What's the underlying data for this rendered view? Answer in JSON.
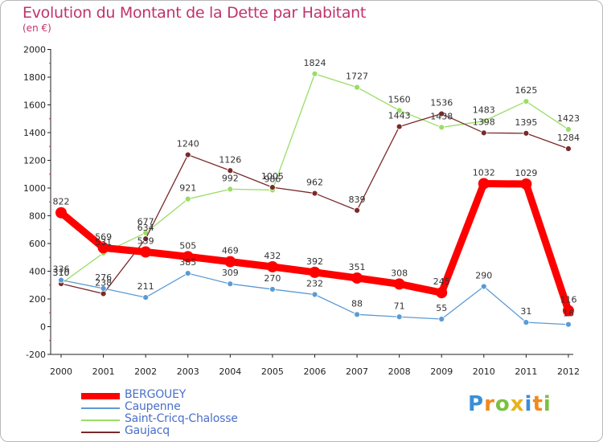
{
  "header": {
    "title": "Evolution du Montant de la Dette par Habitant",
    "subtitle": "(en €)"
  },
  "chart_data": {
    "type": "line",
    "title": "Evolution du Montant de la Dette par Habitant",
    "ylabel": "(en €)",
    "xlabel": "",
    "ylim": [
      -200,
      2000
    ],
    "yticks": [
      "-200",
      "0",
      "200",
      "400",
      "600",
      "800",
      "1000",
      "1200",
      "1400",
      "1600",
      "1800",
      "2000"
    ],
    "x": [
      "2000",
      "2001",
      "2002",
      "2003",
      "2004",
      "2005",
      "2006",
      "2007",
      "2008",
      "2009",
      "2010",
      "2011",
      "2012"
    ],
    "grid": false,
    "legend_position": "bottom-left",
    "series": [
      {
        "name": "BERGOUEY",
        "color": "#ff0000",
        "values": [
          822,
          569,
          539,
          505,
          469,
          432,
          392,
          351,
          308,
          245,
          1032,
          1029,
          116
        ],
        "labels": [
          "822",
          "569",
          "539",
          "505",
          "469",
          "432",
          "392",
          "351",
          "308",
          "245",
          "1032",
          "1029",
          "116"
        ]
      },
      {
        "name": "Caupenne",
        "color": "#5b9bd5",
        "values": [
          336,
          276,
          211,
          385,
          309,
          270,
          232,
          88,
          71,
          55,
          290,
          31,
          16
        ],
        "labels": [
          "336",
          "276",
          "211",
          "385",
          "309",
          "270",
          "232",
          "88",
          "71",
          "55",
          "290",
          "31",
          "16"
        ]
      },
      {
        "name": "Saint-Cricq-Chalosse",
        "color": "#99dd66",
        "values": [
          310,
          531,
          677,
          921,
          992,
          986,
          1824,
          1727,
          1560,
          1438,
          1483,
          1625,
          1423
        ],
        "labels": [
          "310",
          "531",
          "677",
          "921",
          "992",
          "986",
          "1824",
          "1727",
          "1560",
          "1438",
          "1483",
          "1625",
          "1423"
        ]
      },
      {
        "name": "Gaujacq",
        "color": "#7a2a2a",
        "values": [
          310,
          238,
          634,
          1240,
          1126,
          1005,
          962,
          839,
          1443,
          1536,
          1398,
          1395,
          1284
        ],
        "labels": [
          "310",
          "238",
          "634",
          "1240",
          "1126",
          "1005",
          "962",
          "839",
          "1443",
          "1536",
          "1398",
          "1395",
          "1284"
        ]
      }
    ]
  },
  "branding": {
    "letters": [
      "P",
      "r",
      "o",
      "x",
      "i",
      "t",
      "i"
    ],
    "colors": [
      "#3a8fd6",
      "#f08a1c",
      "#7ac142",
      "#e8b21a",
      "#3a8fd6",
      "#f08a1c",
      "#7ac142"
    ]
  }
}
